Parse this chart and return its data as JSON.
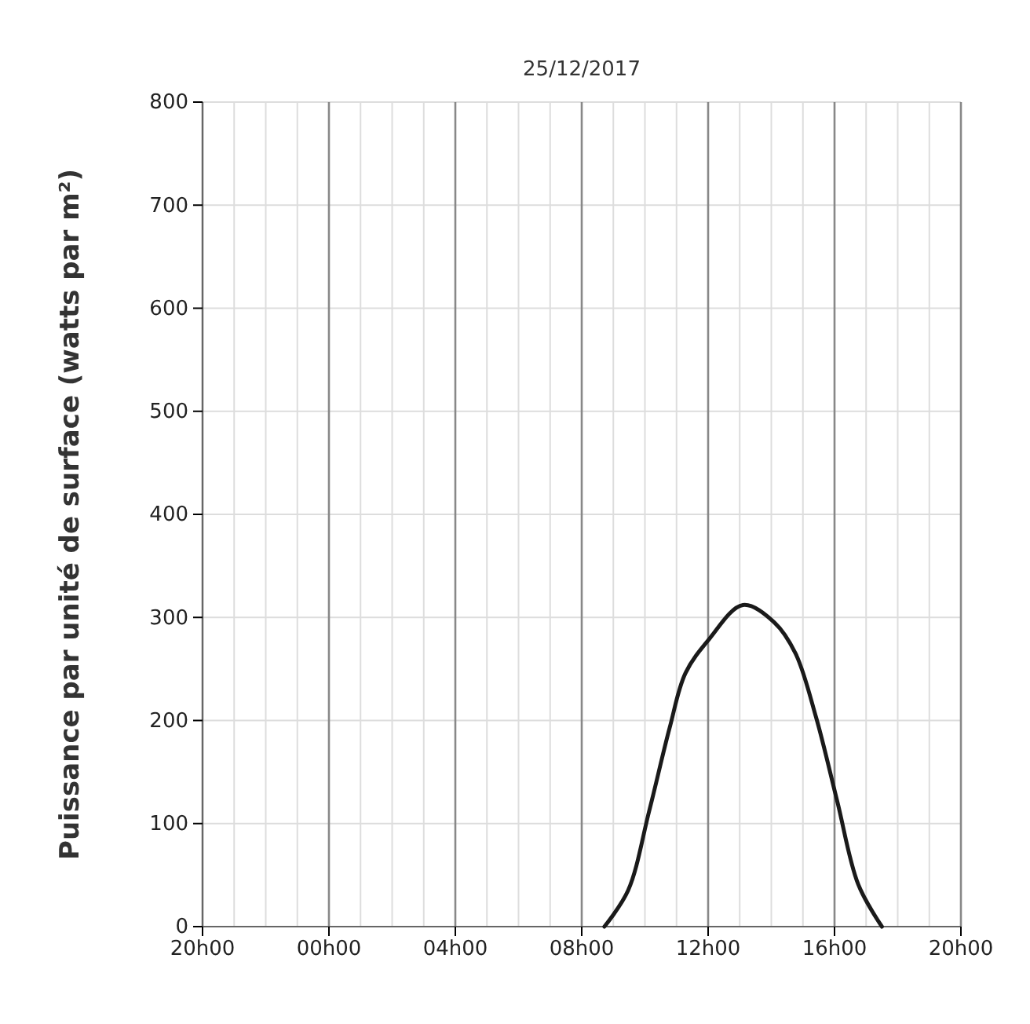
{
  "chart_data": {
    "type": "line",
    "title": "25/12/2017",
    "ylabel": "Puissance par unité de surface (watts par m²)",
    "x": [
      "2017-12-25T08:43",
      "2017-12-25T09:28",
      "2017-12-25T10:08",
      "2017-12-25T10:47",
      "2017-12-25T11:17",
      "2017-12-25T12:02",
      "2017-12-25T13:06",
      "2017-12-25T14:06",
      "2017-12-25T14:46",
      "2017-12-25T15:25",
      "2017-12-25T16:05",
      "2017-12-25T16:45",
      "2017-12-25T17:30"
    ],
    "series": [
      {
        "color": "#1a1a1a",
        "values": [
          0,
          35,
          112,
          193,
          246,
          279,
          312,
          295,
          265,
          203,
          122,
          41,
          0
        ]
      }
    ],
    "xlim": [
      "2017-12-24T20:00",
      "2017-12-25T20:00"
    ],
    "xticks": [
      {
        "value": "2017-12-24T20:00",
        "label": "20h00"
      },
      {
        "value": "2017-12-24T21:00",
        "label": null
      },
      {
        "value": "2017-12-24T22:00",
        "label": null
      },
      {
        "value": "2017-12-24T23:00",
        "label": null
      },
      {
        "value": "2017-12-25T00:00",
        "label": "00h00"
      },
      {
        "value": "2017-12-25T01:00",
        "label": null
      },
      {
        "value": "2017-12-25T02:00",
        "label": null
      },
      {
        "value": "2017-12-25T03:00",
        "label": null
      },
      {
        "value": "2017-12-25T04:00",
        "label": "04h00"
      },
      {
        "value": "2017-12-25T05:00",
        "label": null
      },
      {
        "value": "2017-12-25T06:00",
        "label": null
      },
      {
        "value": "2017-12-25T07:00",
        "label": null
      },
      {
        "value": "2017-12-25T08:00",
        "label": "08h00"
      },
      {
        "value": "2017-12-25T09:00",
        "label": null
      },
      {
        "value": "2017-12-25T10:00",
        "label": null
      },
      {
        "value": "2017-12-25T11:00",
        "label": null
      },
      {
        "value": "2017-12-25T12:00",
        "label": "12h00"
      },
      {
        "value": "2017-12-25T13:00",
        "label": null
      },
      {
        "value": "2017-12-25T14:00",
        "label": null
      },
      {
        "value": "2017-12-25T15:00",
        "label": null
      },
      {
        "value": "2017-12-25T16:00",
        "label": "16h00"
      },
      {
        "value": "2017-12-25T17:00",
        "label": null
      },
      {
        "value": "2017-12-25T18:00",
        "label": null
      },
      {
        "value": "2017-12-25T19:00",
        "label": null
      },
      {
        "value": "2017-12-25T20:00",
        "label": "20h00"
      }
    ],
    "ylim": [
      0,
      800
    ],
    "yticks": [
      0,
      100,
      200,
      300,
      400,
      500,
      600,
      700,
      800
    ],
    "grid": true,
    "marker": "none",
    "line_style": "solid"
  }
}
